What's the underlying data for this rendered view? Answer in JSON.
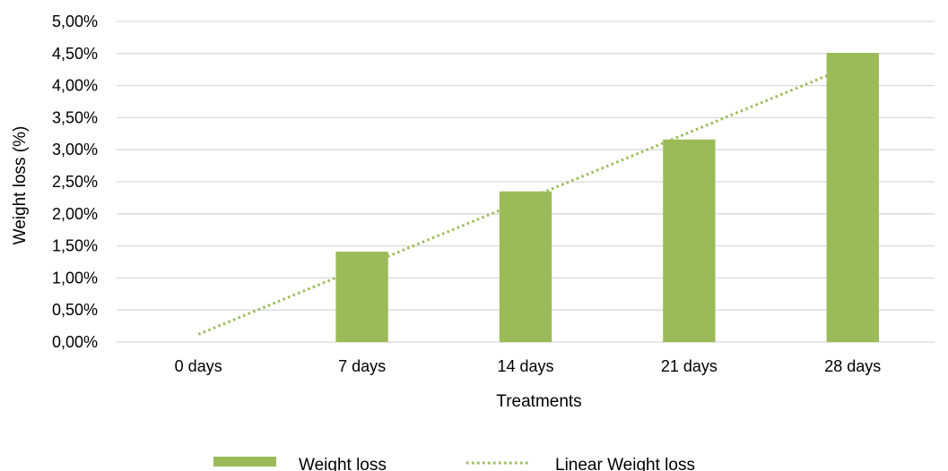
{
  "chart_data": {
    "type": "bar",
    "title": "",
    "xlabel": "Treatments",
    "ylabel": "Weight loss (%)",
    "categories": [
      "0 days",
      "7 days",
      "14 days",
      "21 days",
      "28 days"
    ],
    "series": [
      {
        "name": "Weight loss",
        "values": [
          0.0,
          1.41,
          2.35,
          3.16,
          4.51
        ],
        "color": "#9bbb59"
      }
    ],
    "trendline": {
      "name": "Linear Weight loss",
      "type": "linear",
      "of_series": "Weight loss",
      "start": 0.12,
      "end": 4.32,
      "color": "#9bbb59",
      "style": "dotted"
    },
    "ylim": [
      0,
      5
    ],
    "yticks": [
      0,
      0.5,
      1,
      1.5,
      2,
      2.5,
      3,
      3.5,
      4,
      4.5,
      5
    ],
    "ytick_labels": [
      "0,00%",
      "0,50%",
      "1,00%",
      "1,50%",
      "2,00%",
      "2,50%",
      "3,00%",
      "3,50%",
      "4,00%",
      "4,50%",
      "5,00%"
    ],
    "grid": true,
    "legend_position": "bottom"
  }
}
